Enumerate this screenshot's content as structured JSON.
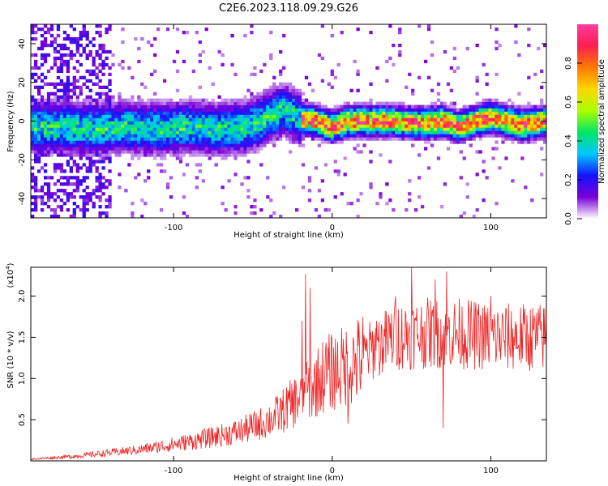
{
  "title": "C2E6.2023.118.09.29.G26",
  "chart_data": [
    {
      "type": "heatmap",
      "xlabel": "Height of straight line (km)",
      "ylabel": "Frequency (Hz)",
      "xlim": [
        -190,
        135
      ],
      "ylim": [
        -50,
        50
      ],
      "xticks": [
        {
          "v": -100,
          "label": "-100"
        },
        {
          "v": 0,
          "label": "0"
        },
        {
          "v": 100,
          "label": "100"
        }
      ],
      "yticks": [
        {
          "v": -40,
          "label": "-40"
        },
        {
          "v": -20,
          "label": "-20"
        },
        {
          "v": 0,
          "label": "0"
        },
        {
          "v": 20,
          "label": "20"
        },
        {
          "v": 40,
          "label": "40"
        }
      ],
      "colorbar": {
        "label": "Normalized spectral amplitude",
        "range": [
          0,
          1
        ],
        "ticks": [
          {
            "v": 0.0,
            "label": "0.0"
          },
          {
            "v": 0.2,
            "label": "0.2"
          },
          {
            "v": 0.4,
            "label": "0.4"
          },
          {
            "v": 0.6,
            "label": "0.6"
          },
          {
            "v": 0.8,
            "label": "0.8"
          }
        ],
        "colors": [
          "#ffffff",
          "#7a00d6",
          "#1414ff",
          "#00c8ff",
          "#00e664",
          "#aaff00",
          "#ffd700",
          "#ff7a00",
          "#ff1e50",
          "#ff3ca0"
        ]
      },
      "ridge": {
        "x": [
          -180,
          -150,
          -130,
          -110,
          -90,
          -70,
          -55,
          -45,
          -35,
          -30,
          -20,
          -10,
          0,
          10,
          20,
          30,
          40,
          50,
          60,
          70,
          80,
          90,
          100,
          110,
          120,
          135
        ],
        "y": [
          -3,
          -4,
          -3,
          -4,
          -3,
          -4,
          -3,
          0,
          4,
          6,
          1,
          0,
          -3,
          0,
          0,
          0,
          0,
          -1,
          -1,
          0,
          -3,
          0,
          2,
          0,
          -2,
          0
        ]
      }
    },
    {
      "type": "line",
      "xlabel": "Height of straight line (km)",
      "ylabel": "SNR (10 * v/v)",
      "y_multiplier": "(x10",
      "y_multiplier_exp": "4",
      "y_multiplier_close": ")",
      "color": "#ee2222",
      "xlim": [
        -190,
        135
      ],
      "ylim": [
        0.0,
        2.35
      ],
      "xticks": [
        {
          "v": -100,
          "label": "-100"
        },
        {
          "v": 0,
          "label": "0"
        },
        {
          "v": 100,
          "label": "100"
        }
      ],
      "yticks": [
        {
          "v": 0.5,
          "label": "0.5"
        },
        {
          "v": 1.0,
          "label": "1.0"
        },
        {
          "v": 1.5,
          "label": "1.5"
        },
        {
          "v": 2.0,
          "label": "2.0"
        }
      ],
      "trend": {
        "x": [
          -190,
          -160,
          -140,
          -120,
          -100,
          -80,
          -60,
          -45,
          -35,
          -25,
          -15,
          -5,
          5,
          15,
          25,
          40,
          60,
          80,
          100,
          120,
          135
        ],
        "y": [
          0.02,
          0.06,
          0.1,
          0.14,
          0.2,
          0.27,
          0.35,
          0.45,
          0.55,
          0.7,
          0.85,
          1.05,
          1.12,
          1.2,
          1.35,
          1.52,
          1.55,
          1.55,
          1.5,
          1.5,
          1.5
        ]
      },
      "spikes": [
        {
          "x": -17,
          "y": 2.27
        },
        {
          "x": -14,
          "y": 2.1
        },
        {
          "x": -19,
          "y": 1.7
        },
        {
          "x": 28,
          "y": 1.7
        },
        {
          "x": 40,
          "y": 2.0
        },
        {
          "x": 50,
          "y": 2.35
        },
        {
          "x": 65,
          "y": 2.2
        },
        {
          "x": 72,
          "y": 2.3
        },
        {
          "x": 100,
          "y": 2.0
        },
        {
          "x": 70,
          "y": 0.4
        },
        {
          "x": 10,
          "y": 0.45
        }
      ]
    }
  ]
}
